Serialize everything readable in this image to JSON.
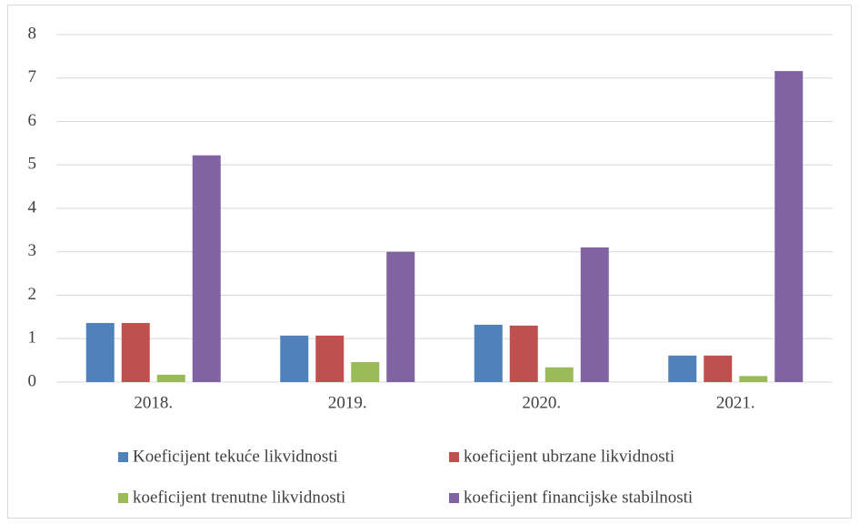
{
  "chart_data": {
    "type": "bar",
    "categories": [
      "2018.",
      "2019.",
      "2020.",
      "2021."
    ],
    "series": [
      {
        "name": "Koeficijent tekuće likvidnosti",
        "color": "#4f81bd",
        "values": [
          1.36,
          1.07,
          1.32,
          0.61
        ]
      },
      {
        "name": "koeficijent ubrzane likvidnosti",
        "color": "#c0504d",
        "values": [
          1.36,
          1.07,
          1.3,
          0.61
        ]
      },
      {
        "name": "koeficijent trenutne likvidnosti",
        "color": "#9bbb59",
        "values": [
          0.17,
          0.46,
          0.34,
          0.14
        ]
      },
      {
        "name": "koeficijent financijske stabilnosti",
        "color": "#8064a2",
        "values": [
          5.22,
          3.0,
          3.1,
          7.16
        ]
      }
    ],
    "ylim": [
      0,
      8
    ],
    "yticks": [
      0,
      1,
      2,
      3,
      4,
      5,
      6,
      7,
      8
    ],
    "grid": true,
    "legend": "bottom"
  }
}
